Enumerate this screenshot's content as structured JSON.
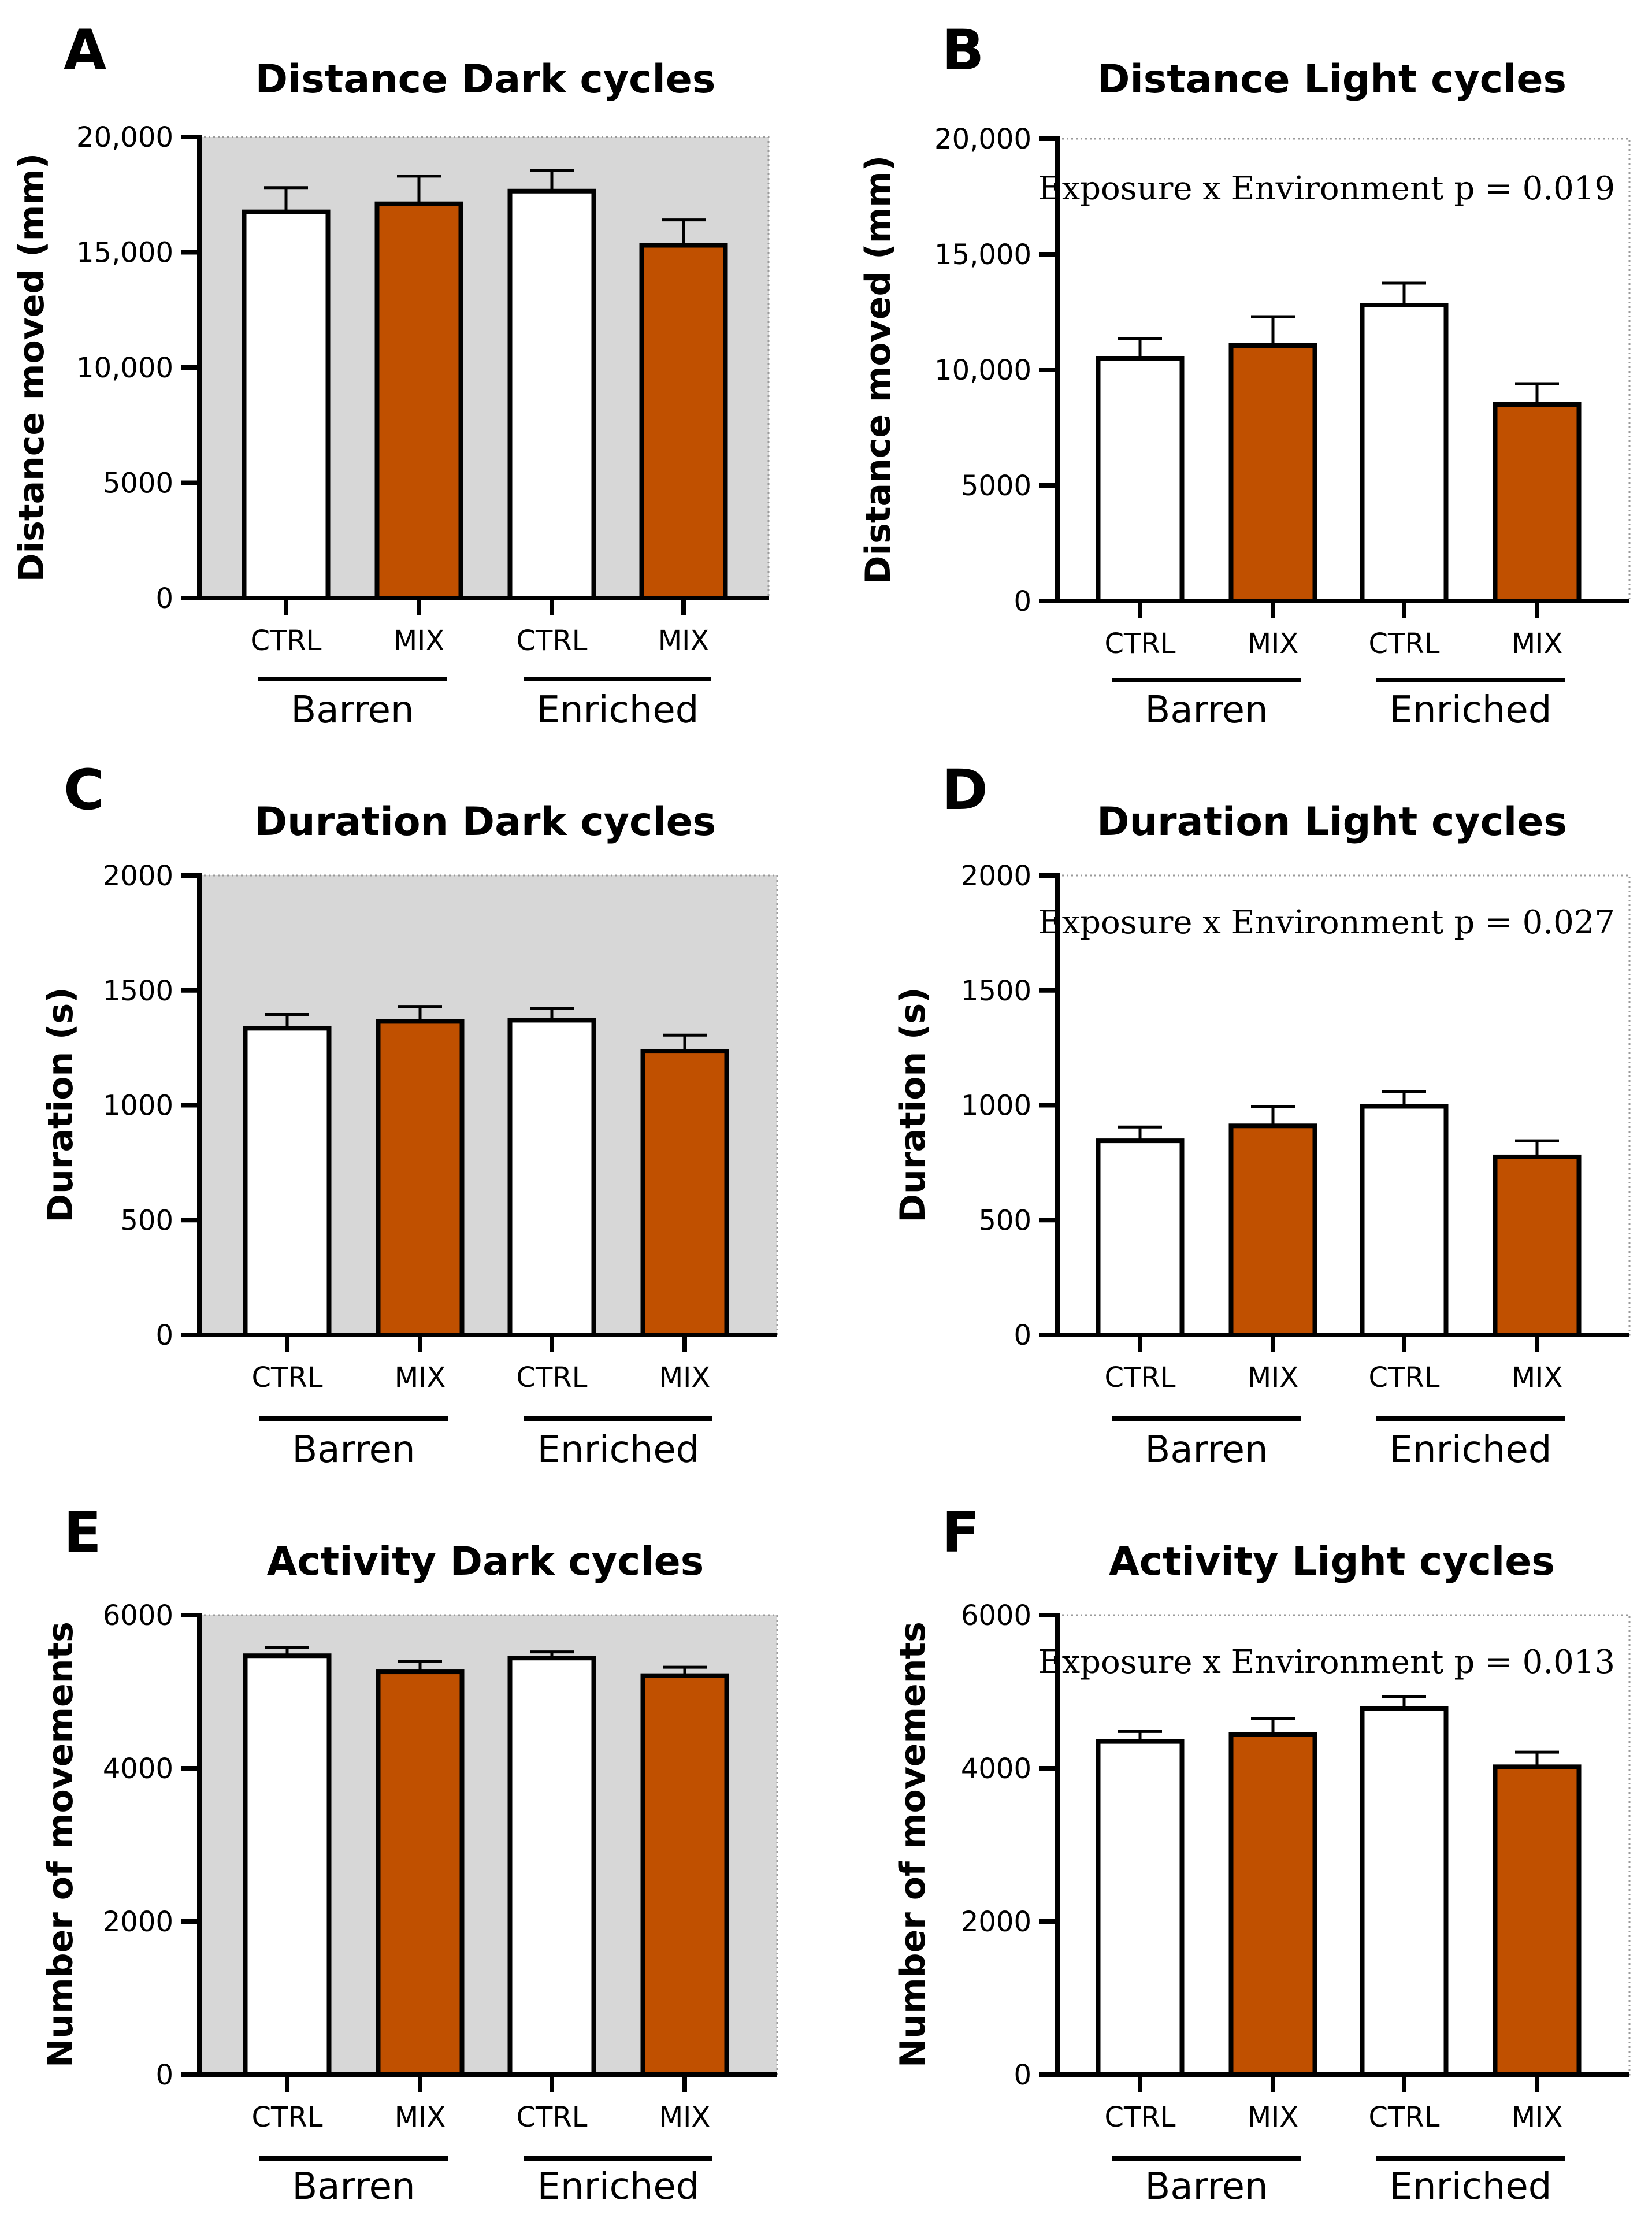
{
  "colors": {
    "ctrl_fill": "#ffffff",
    "mix_fill": "#c05000",
    "dark_background": "#d7d7d7",
    "outline": "#000000"
  },
  "chart_data": [
    {
      "panel": "A",
      "type": "bar",
      "title": "Distance Dark cycles",
      "ylabel": "Distance moved (mm)",
      "ylim": [
        0,
        20000
      ],
      "yticks": [
        "0",
        "5000",
        "10,000",
        "15,000",
        "20,000"
      ],
      "categories": [
        "CTRL",
        "MIX",
        "CTRL",
        "MIX"
      ],
      "groups": [
        "Barren",
        "Enriched"
      ],
      "values": [
        16750,
        17100,
        17650,
        15300
      ],
      "errors": [
        1050,
        1200,
        900,
        1100
      ],
      "shaded": true,
      "annotation": ""
    },
    {
      "panel": "B",
      "type": "bar",
      "title": "Distance Light cycles",
      "ylabel": "Distance moved (mm)",
      "ylim": [
        0,
        20000
      ],
      "yticks": [
        "0",
        "5000",
        "10,000",
        "15,000",
        "20,000"
      ],
      "categories": [
        "CTRL",
        "MIX",
        "CTRL",
        "MIX"
      ],
      "groups": [
        "Barren",
        "Enriched"
      ],
      "values": [
        10500,
        11050,
        12800,
        8500
      ],
      "errors": [
        850,
        1250,
        950,
        900
      ],
      "shaded": false,
      "annotation": "Exposure x Environment p = 0.019"
    },
    {
      "panel": "C",
      "type": "bar",
      "title": "Duration Dark cycles",
      "ylabel": "Duration (s)",
      "ylim": [
        0,
        2000
      ],
      "yticks": [
        "0",
        "500",
        "1000",
        "1500",
        "2000"
      ],
      "categories": [
        "CTRL",
        "MIX",
        "CTRL",
        "MIX"
      ],
      "groups": [
        "Barren",
        "Enriched"
      ],
      "values": [
        1335,
        1365,
        1370,
        1235
      ],
      "errors": [
        60,
        65,
        50,
        70
      ],
      "shaded": true,
      "annotation": ""
    },
    {
      "panel": "D",
      "type": "bar",
      "title": "Duration Light cycles",
      "ylabel": "Duration (s)",
      "ylim": [
        0,
        2000
      ],
      "yticks": [
        "0",
        "500",
        "1000",
        "1500",
        "2000"
      ],
      "categories": [
        "CTRL",
        "MIX",
        "CTRL",
        "MIX"
      ],
      "groups": [
        "Barren",
        "Enriched"
      ],
      "values": [
        845,
        910,
        995,
        775
      ],
      "errors": [
        60,
        85,
        65,
        70
      ],
      "shaded": false,
      "annotation": "Exposure x Environment p = 0.027"
    },
    {
      "panel": "E",
      "type": "bar",
      "title": "Activity Dark cycles",
      "ylabel": "Number of movements",
      "ylim": [
        0,
        6000
      ],
      "yticks": [
        "0",
        "2000",
        "4000",
        "6000"
      ],
      "categories": [
        "CTRL",
        "MIX",
        "CTRL",
        "MIX"
      ],
      "groups": [
        "Barren",
        "Enriched"
      ],
      "values": [
        5470,
        5260,
        5440,
        5210
      ],
      "errors": [
        110,
        140,
        80,
        110
      ],
      "shaded": true,
      "annotation": ""
    },
    {
      "panel": "F",
      "type": "bar",
      "title": "Activity Light cycles",
      "ylabel": "Number of movements",
      "ylim": [
        0,
        6000
      ],
      "yticks": [
        "0",
        "2000",
        "4000",
        "6000"
      ],
      "categories": [
        "CTRL",
        "MIX",
        "CTRL",
        "MIX"
      ],
      "groups": [
        "Barren",
        "Enriched"
      ],
      "values": [
        4350,
        4440,
        4780,
        4020
      ],
      "errors": [
        130,
        210,
        160,
        190
      ],
      "shaded": false,
      "annotation": "Exposure x Environment p = 0.013"
    }
  ]
}
